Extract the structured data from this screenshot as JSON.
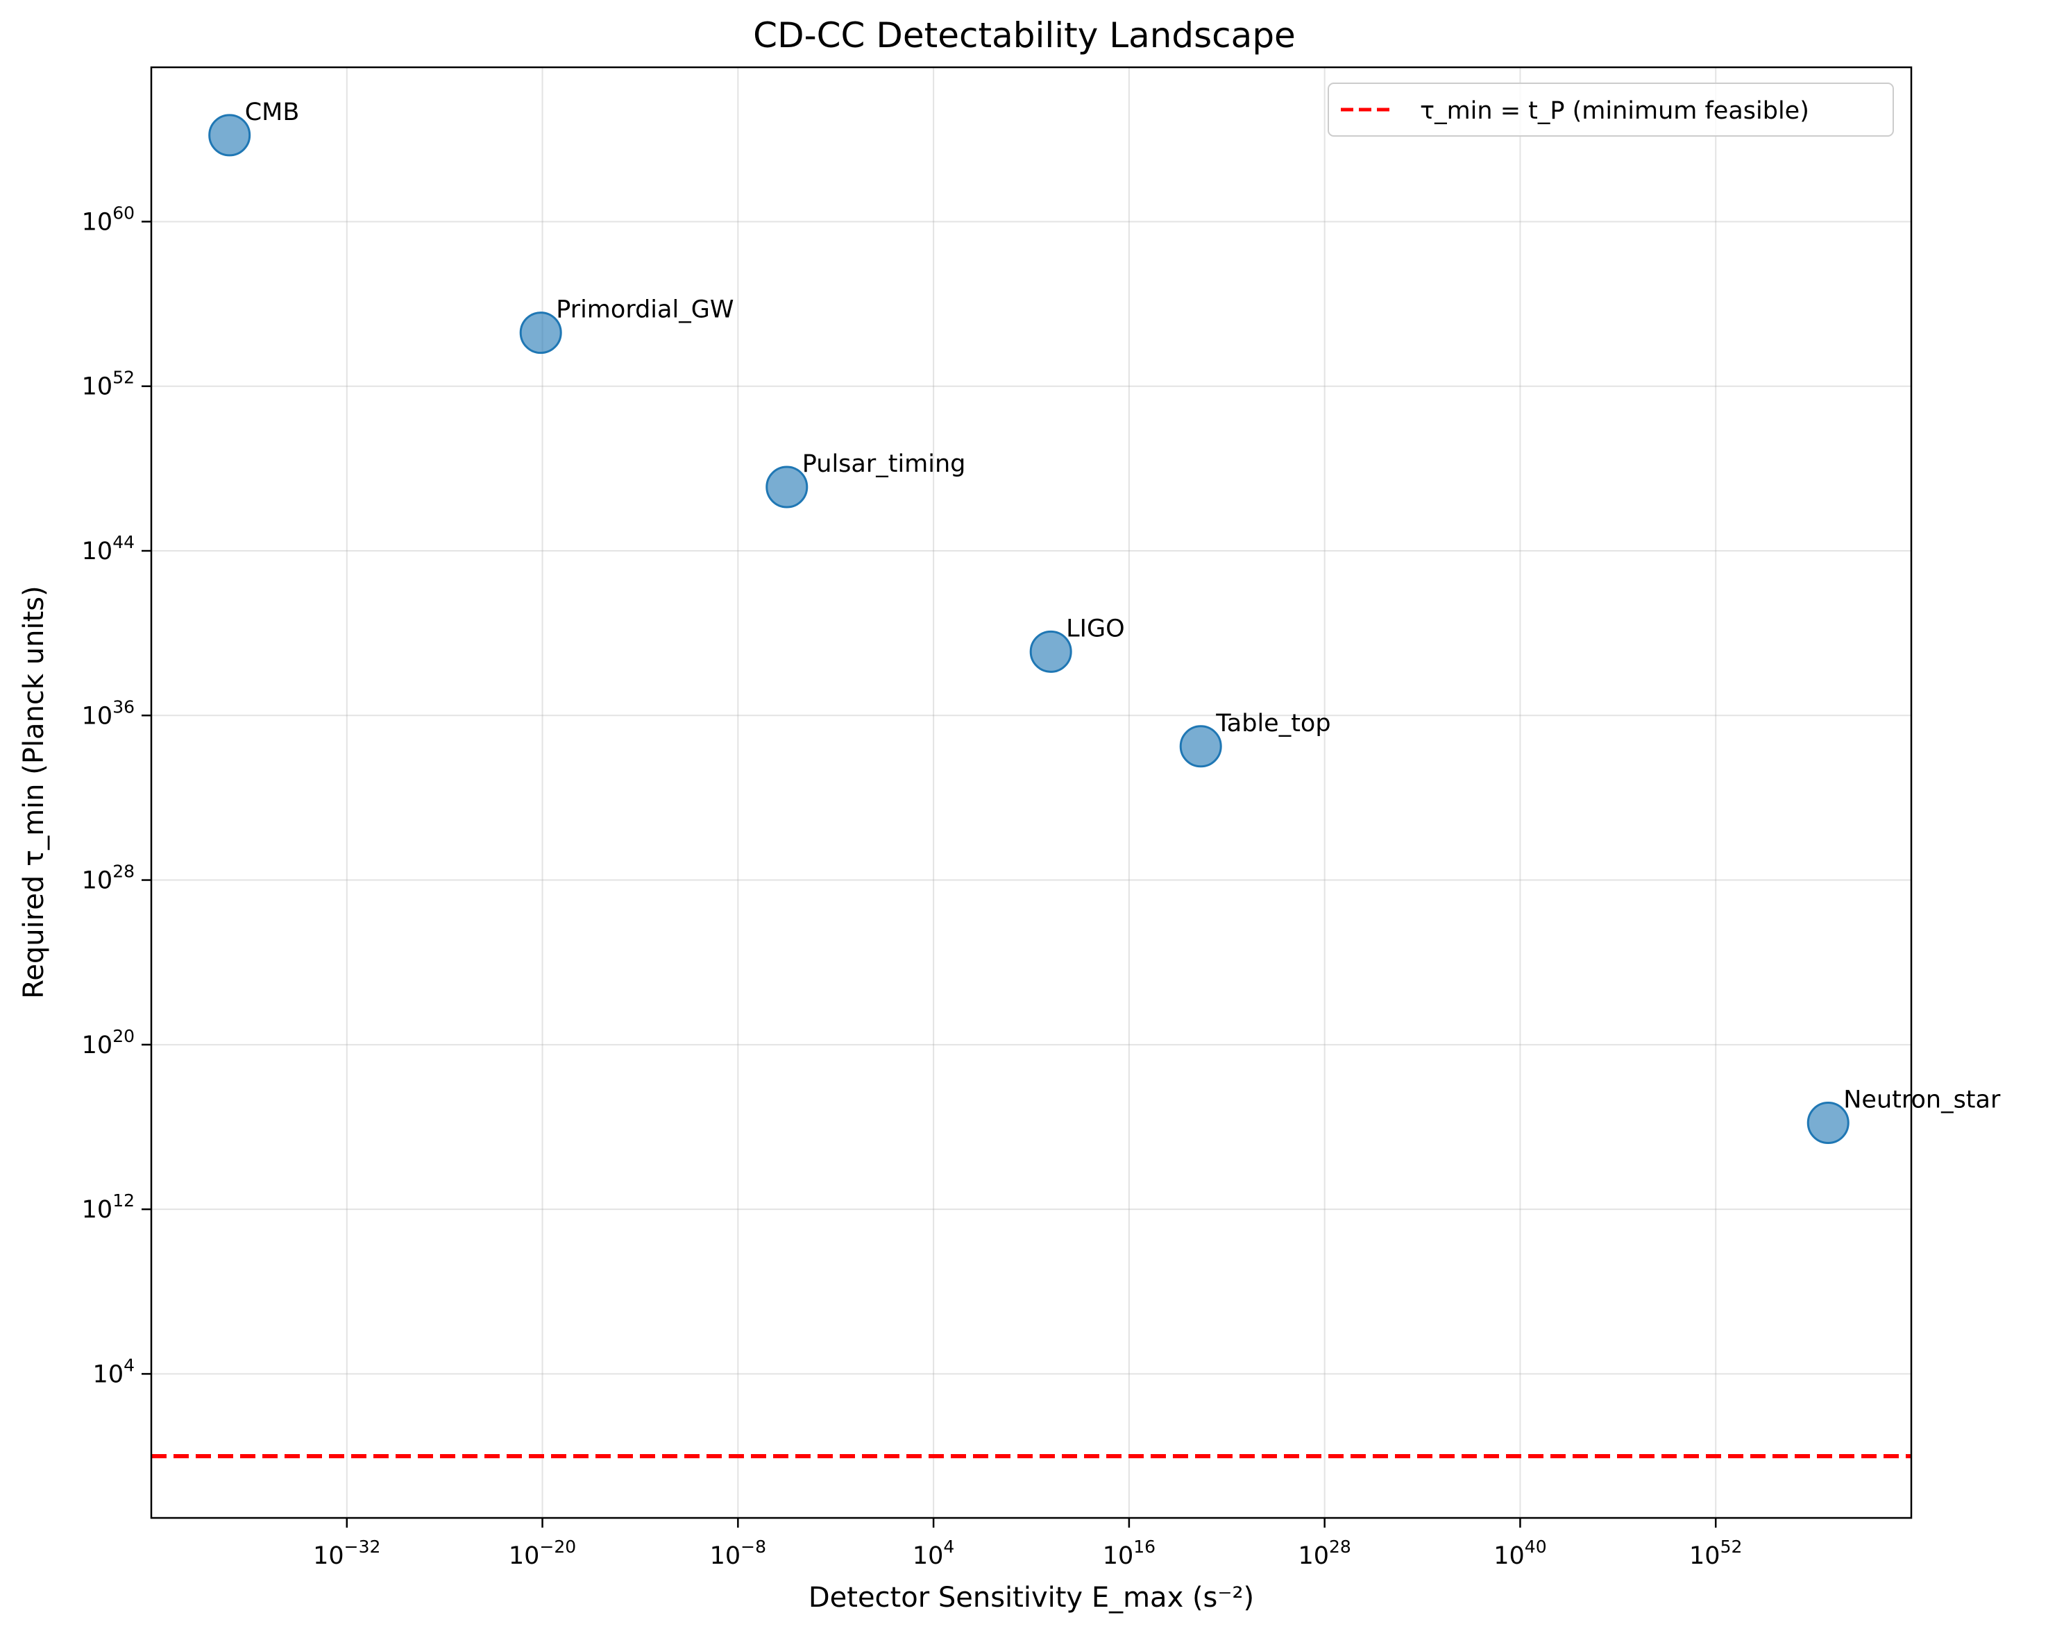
{
  "chart_data": {
    "type": "scatter",
    "title": "CD-CC Detectability Landscape",
    "xlabel": "Detector Sensitivity E_max (s⁻²)",
    "ylabel": "Required τ_min (Planck units)",
    "x_scale": "log",
    "y_scale": "log",
    "xlim_log10": [
      -44,
      64
    ],
    "ylim_log10": [
      -3,
      67.5
    ],
    "x_ticks": [
      {
        "exp": -32,
        "base": "10",
        "sup": "−32"
      },
      {
        "exp": -20,
        "base": "10",
        "sup": "−20"
      },
      {
        "exp": -8,
        "base": "10",
        "sup": "−8"
      },
      {
        "exp": 4,
        "base": "10",
        "sup": "4"
      },
      {
        "exp": 16,
        "base": "10",
        "sup": "16"
      },
      {
        "exp": 28,
        "base": "10",
        "sup": "28"
      },
      {
        "exp": 40,
        "base": "10",
        "sup": "40"
      },
      {
        "exp": 52,
        "base": "10",
        "sup": "52"
      }
    ],
    "y_ticks": [
      {
        "exp": 4,
        "base": "10",
        "sup": "4"
      },
      {
        "exp": 12,
        "base": "10",
        "sup": "12"
      },
      {
        "exp": 20,
        "base": "10",
        "sup": "20"
      },
      {
        "exp": 28,
        "base": "10",
        "sup": "28"
      },
      {
        "exp": 36,
        "base": "10",
        "sup": "36"
      },
      {
        "exp": 44,
        "base": "10",
        "sup": "44"
      },
      {
        "exp": 52,
        "base": "10",
        "sup": "52"
      },
      {
        "exp": 60,
        "base": "10",
        "sup": "60"
      }
    ],
    "grid": true,
    "points": [
      {
        "label": "CMB",
        "x_log10": -39.2,
        "y_log10": 64.2
      },
      {
        "label": "Primordial_GW",
        "x_log10": -20.1,
        "y_log10": 54.6
      },
      {
        "label": "Pulsar_timing",
        "x_log10": -5.0,
        "y_log10": 47.1
      },
      {
        "label": "LIGO",
        "x_log10": 11.2,
        "y_log10": 39.1
      },
      {
        "label": "Table_top",
        "x_log10": 20.4,
        "y_log10": 34.5
      },
      {
        "label": "Neutron_star",
        "x_log10": 58.9,
        "y_log10": 16.2
      }
    ],
    "marker_color": "#1f77b4",
    "reference_line": {
      "label": "τ_min = t_P (minimum feasible)",
      "y_log10": 0,
      "color": "#ff0000",
      "style": "dashed"
    },
    "legend_position": "top-right"
  }
}
